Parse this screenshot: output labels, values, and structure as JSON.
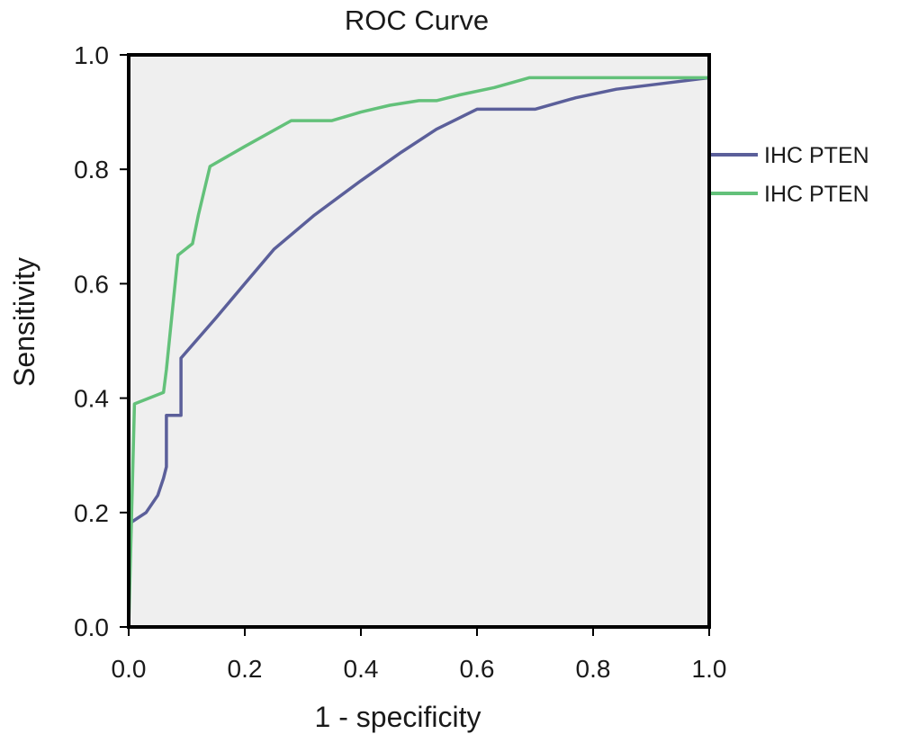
{
  "chart_data": {
    "type": "line",
    "title": "ROC Curve",
    "xlabel": "1 - specificity",
    "ylabel": "Sensitivity",
    "xlim": [
      0,
      1.0
    ],
    "ylim": [
      0,
      1.0
    ],
    "x_ticks": [
      0.0,
      0.2,
      0.4,
      0.6,
      0.8,
      1.0
    ],
    "y_ticks": [
      0.0,
      0.2,
      0.4,
      0.6,
      0.8,
      1.0
    ],
    "x_tick_labels": [
      "0.0",
      "0.2",
      "0.4",
      "0.6",
      "0.8",
      "1.0"
    ],
    "y_tick_labels": [
      "0.0",
      "0.2",
      "0.4",
      "0.6",
      "0.8",
      "1.0"
    ],
    "grid": false,
    "legend_position": "right",
    "plot_background": "#efefef",
    "series": [
      {
        "name": "IHC PTEN",
        "color": "#5b5f9a",
        "points": [
          [
            0.0,
            0.0
          ],
          [
            0.0,
            0.18
          ],
          [
            0.03,
            0.2
          ],
          [
            0.05,
            0.23
          ],
          [
            0.06,
            0.26
          ],
          [
            0.065,
            0.28
          ],
          [
            0.065,
            0.37
          ],
          [
            0.09,
            0.37
          ],
          [
            0.09,
            0.47
          ],
          [
            0.15,
            0.54
          ],
          [
            0.2,
            0.6
          ],
          [
            0.25,
            0.66
          ],
          [
            0.32,
            0.72
          ],
          [
            0.4,
            0.78
          ],
          [
            0.47,
            0.83
          ],
          [
            0.53,
            0.87
          ],
          [
            0.6,
            0.905
          ],
          [
            0.7,
            0.905
          ],
          [
            0.77,
            0.925
          ],
          [
            0.84,
            0.94
          ],
          [
            0.92,
            0.95
          ],
          [
            1.0,
            0.96
          ]
        ]
      },
      {
        "name": "IHC PTEN",
        "color": "#63c17a",
        "points": [
          [
            0.0,
            0.0
          ],
          [
            0.01,
            0.39
          ],
          [
            0.06,
            0.41
          ],
          [
            0.065,
            0.45
          ],
          [
            0.085,
            0.65
          ],
          [
            0.11,
            0.67
          ],
          [
            0.12,
            0.72
          ],
          [
            0.14,
            0.805
          ],
          [
            0.2,
            0.84
          ],
          [
            0.28,
            0.885
          ],
          [
            0.35,
            0.885
          ],
          [
            0.4,
            0.9
          ],
          [
            0.45,
            0.912
          ],
          [
            0.5,
            0.92
          ],
          [
            0.53,
            0.92
          ],
          [
            0.57,
            0.93
          ],
          [
            0.63,
            0.943
          ],
          [
            0.69,
            0.96
          ],
          [
            0.75,
            0.96
          ],
          [
            0.85,
            0.96
          ],
          [
            1.0,
            0.96
          ]
        ]
      }
    ]
  }
}
